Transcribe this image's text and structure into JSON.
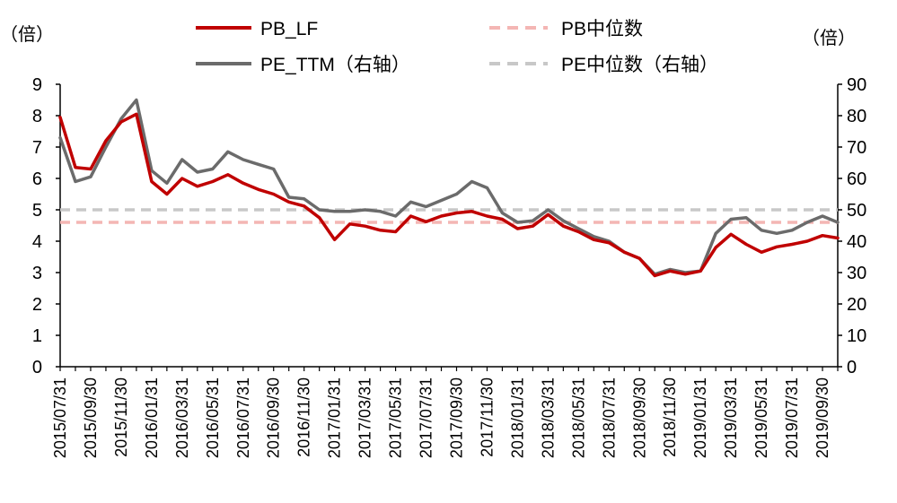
{
  "chart_data": {
    "type": "line",
    "left_unit": "（倍）",
    "right_unit": "（倍）",
    "y_left": {
      "min": 0,
      "max": 9,
      "ticks": [
        "0",
        "1",
        "2",
        "3",
        "4",
        "5",
        "6",
        "7",
        "8",
        "9"
      ]
    },
    "y_right": {
      "min": 0,
      "max": 90,
      "ticks": [
        "0",
        "10",
        "20",
        "30",
        "40",
        "50",
        "60",
        "70",
        "80",
        "90"
      ]
    },
    "x_tick_labels": [
      "2015/07/31",
      "2015/09/30",
      "2015/11/30",
      "2016/01/31",
      "2016/03/31",
      "2016/05/31",
      "2016/07/31",
      "2016/09/30",
      "2016/11/30",
      "2017/01/31",
      "2017/03/31",
      "2017/05/31",
      "2017/07/31",
      "2017/09/30",
      "2017/11/30",
      "2018/01/31",
      "2018/03/31",
      "2018/05/31",
      "2018/07/31",
      "2018/09/30",
      "2018/11/30",
      "2019/01/31",
      "2019/03/31",
      "2019/05/31",
      "2019/07/31",
      "2019/09/30"
    ],
    "x_points": [
      "2015/07/31",
      "2015/08/31",
      "2015/09/30",
      "2015/10/31",
      "2015/11/30",
      "2015/12/31",
      "2016/01/31",
      "2016/02/29",
      "2016/03/31",
      "2016/04/30",
      "2016/05/31",
      "2016/06/30",
      "2016/07/31",
      "2016/08/31",
      "2016/09/30",
      "2016/10/31",
      "2016/11/30",
      "2016/12/31",
      "2017/01/31",
      "2017/02/28",
      "2017/03/31",
      "2017/04/30",
      "2017/05/31",
      "2017/06/30",
      "2017/07/31",
      "2017/08/31",
      "2017/09/30",
      "2017/10/31",
      "2017/11/30",
      "2017/12/31",
      "2018/01/31",
      "2018/02/28",
      "2018/03/31",
      "2018/04/30",
      "2018/05/31",
      "2018/06/30",
      "2018/07/31",
      "2018/08/31",
      "2018/09/30",
      "2018/10/31",
      "2018/11/30",
      "2018/12/31",
      "2019/01/31",
      "2019/02/28",
      "2019/03/31",
      "2019/04/30",
      "2019/05/31",
      "2019/06/30",
      "2019/07/31",
      "2019/08/31",
      "2019/09/30",
      "2019/10/31"
    ],
    "series": [
      {
        "name": "PB_LF",
        "axis": "left",
        "color": "#c00000",
        "values": [
          7.95,
          6.35,
          6.3,
          7.2,
          7.8,
          8.05,
          5.9,
          5.5,
          6.0,
          5.75,
          5.9,
          6.12,
          5.85,
          5.65,
          5.5,
          5.25,
          5.12,
          4.75,
          4.05,
          4.55,
          4.48,
          4.35,
          4.3,
          4.8,
          4.62,
          4.8,
          4.9,
          4.95,
          4.8,
          4.7,
          4.4,
          4.48,
          4.85,
          4.48,
          4.3,
          4.05,
          3.95,
          3.65,
          3.45,
          2.9,
          3.05,
          2.95,
          3.05,
          3.8,
          4.22,
          3.9,
          3.65,
          3.82,
          3.9,
          4.0,
          4.18,
          4.1
        ]
      },
      {
        "name": "PE_TTM（右轴）",
        "axis": "right",
        "color": "#6b6b6b",
        "values": [
          73,
          59,
          60.5,
          70,
          79,
          85,
          62.5,
          58.5,
          66,
          62,
          63,
          68.5,
          66,
          64.5,
          63,
          54,
          53.5,
          50,
          49.5,
          49.5,
          50,
          49.5,
          48,
          52.5,
          51,
          53,
          55,
          59,
          57,
          49,
          46,
          46.5,
          50,
          46.5,
          44,
          41.5,
          40,
          36.5,
          34.5,
          29.5,
          31,
          30,
          30.5,
          42.5,
          47,
          47.5,
          43.5,
          42.5,
          43.5,
          46,
          48,
          46
        ]
      },
      {
        "name": "PB中位数",
        "axis": "left",
        "color": "#f4b6b4",
        "dashed": true,
        "constant": 4.6
      },
      {
        "name": "PE中位数（右轴）",
        "axis": "right",
        "color": "#c8c8c8",
        "dashed": true,
        "constant": 50
      }
    ],
    "legend_placement": "top",
    "grid": false
  }
}
